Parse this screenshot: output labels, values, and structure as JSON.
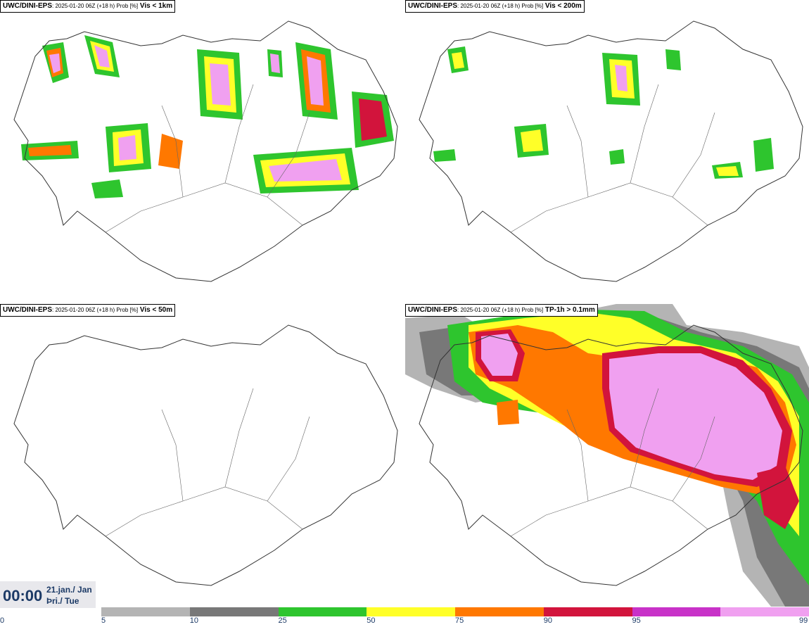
{
  "panels": [
    {
      "id": "tl",
      "model": "UWC/DINI-EPS",
      "meta": ": 2025-01-20 06Z (+18 h) Prob [%]",
      "param": "Vis < 1km"
    },
    {
      "id": "tr",
      "model": "UWC/DINI-EPS",
      "meta": ": 2025-01-20 06Z (+18 h) Prob [%]",
      "param": "Vis < 200m"
    },
    {
      "id": "bl",
      "model": "UWC/DINI-EPS",
      "meta": ": 2025-01-20 06Z (+18 h) Prob [%]",
      "param": "Vis < 50m"
    },
    {
      "id": "br",
      "model": "UWC/DINI-EPS",
      "meta": ": 2025-01-20 06Z (+18 h) Prob [%]",
      "param": "TP-1h > 0.1mm"
    }
  ],
  "time": {
    "clock": "00:00",
    "date_line1": "21.jan./ Jan",
    "date_line2": "Þri./ Tue"
  },
  "legend": {
    "ticks": [
      "0",
      "5",
      "10",
      "25",
      "50",
      "75",
      "90",
      "95",
      "99"
    ],
    "colors": [
      "#b4b4b4",
      "#787878",
      "#2ec52e",
      "#ffff28",
      "#ff7800",
      "#d2143c",
      "#c832c8",
      "#f0a0f0"
    ]
  }
}
